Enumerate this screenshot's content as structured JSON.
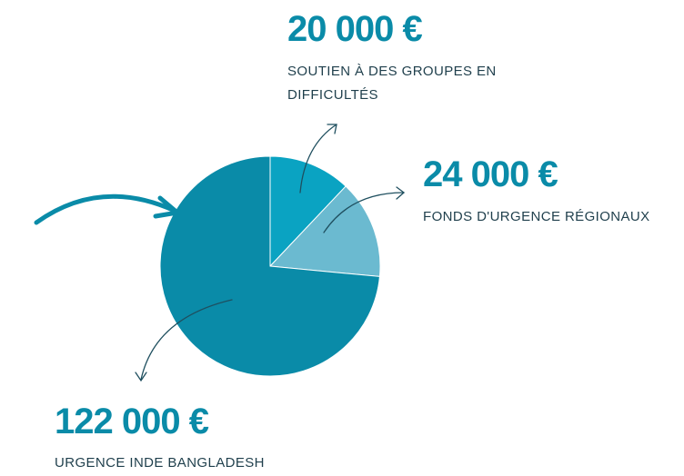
{
  "chart_data": {
    "type": "pie",
    "categories": [
      "SOUTIEN À DES GROUPES EN DIFFICULTÉS",
      "FONDS D'URGENCE RÉGIONAUX",
      "URGENCE INDE BANGLADESH"
    ],
    "values": [
      20000,
      24000,
      122000
    ],
    "value_labels": [
      "20 000 €",
      "24 000 €",
      "122 000 €"
    ],
    "colors": [
      "#0aa3c2",
      "#6bbad0",
      "#0a8ba8"
    ]
  }
}
